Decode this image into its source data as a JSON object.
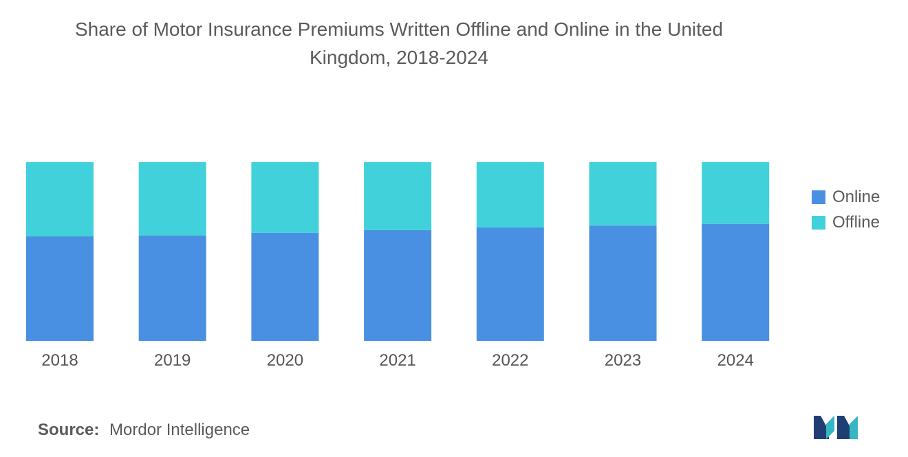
{
  "title_line1": "Share of Motor Insurance Premiums Written Offline and Online in the United",
  "title_line2": "Kingdom, 2018-2024",
  "source_label": "Source:",
  "source_text": "Mordor Intelligence",
  "colors": {
    "online": "#4a90e2",
    "offline": "#40d1da",
    "logo_dark": "#1f3f73",
    "logo_teal": "#35b6c4"
  },
  "chart_data": {
    "type": "bar",
    "stacked": true,
    "categories": [
      "2018",
      "2019",
      "2020",
      "2021",
      "2022",
      "2023",
      "2024"
    ],
    "series": [
      {
        "name": "Online",
        "values": [
          58.5,
          59,
          60.5,
          62,
          63.5,
          64.5,
          65.5
        ]
      },
      {
        "name": "Offline",
        "values": [
          41.5,
          41,
          39.5,
          38,
          36.5,
          35.5,
          34.5
        ]
      }
    ],
    "ylim": [
      0,
      100
    ],
    "grid": false,
    "legend_position": "right"
  }
}
